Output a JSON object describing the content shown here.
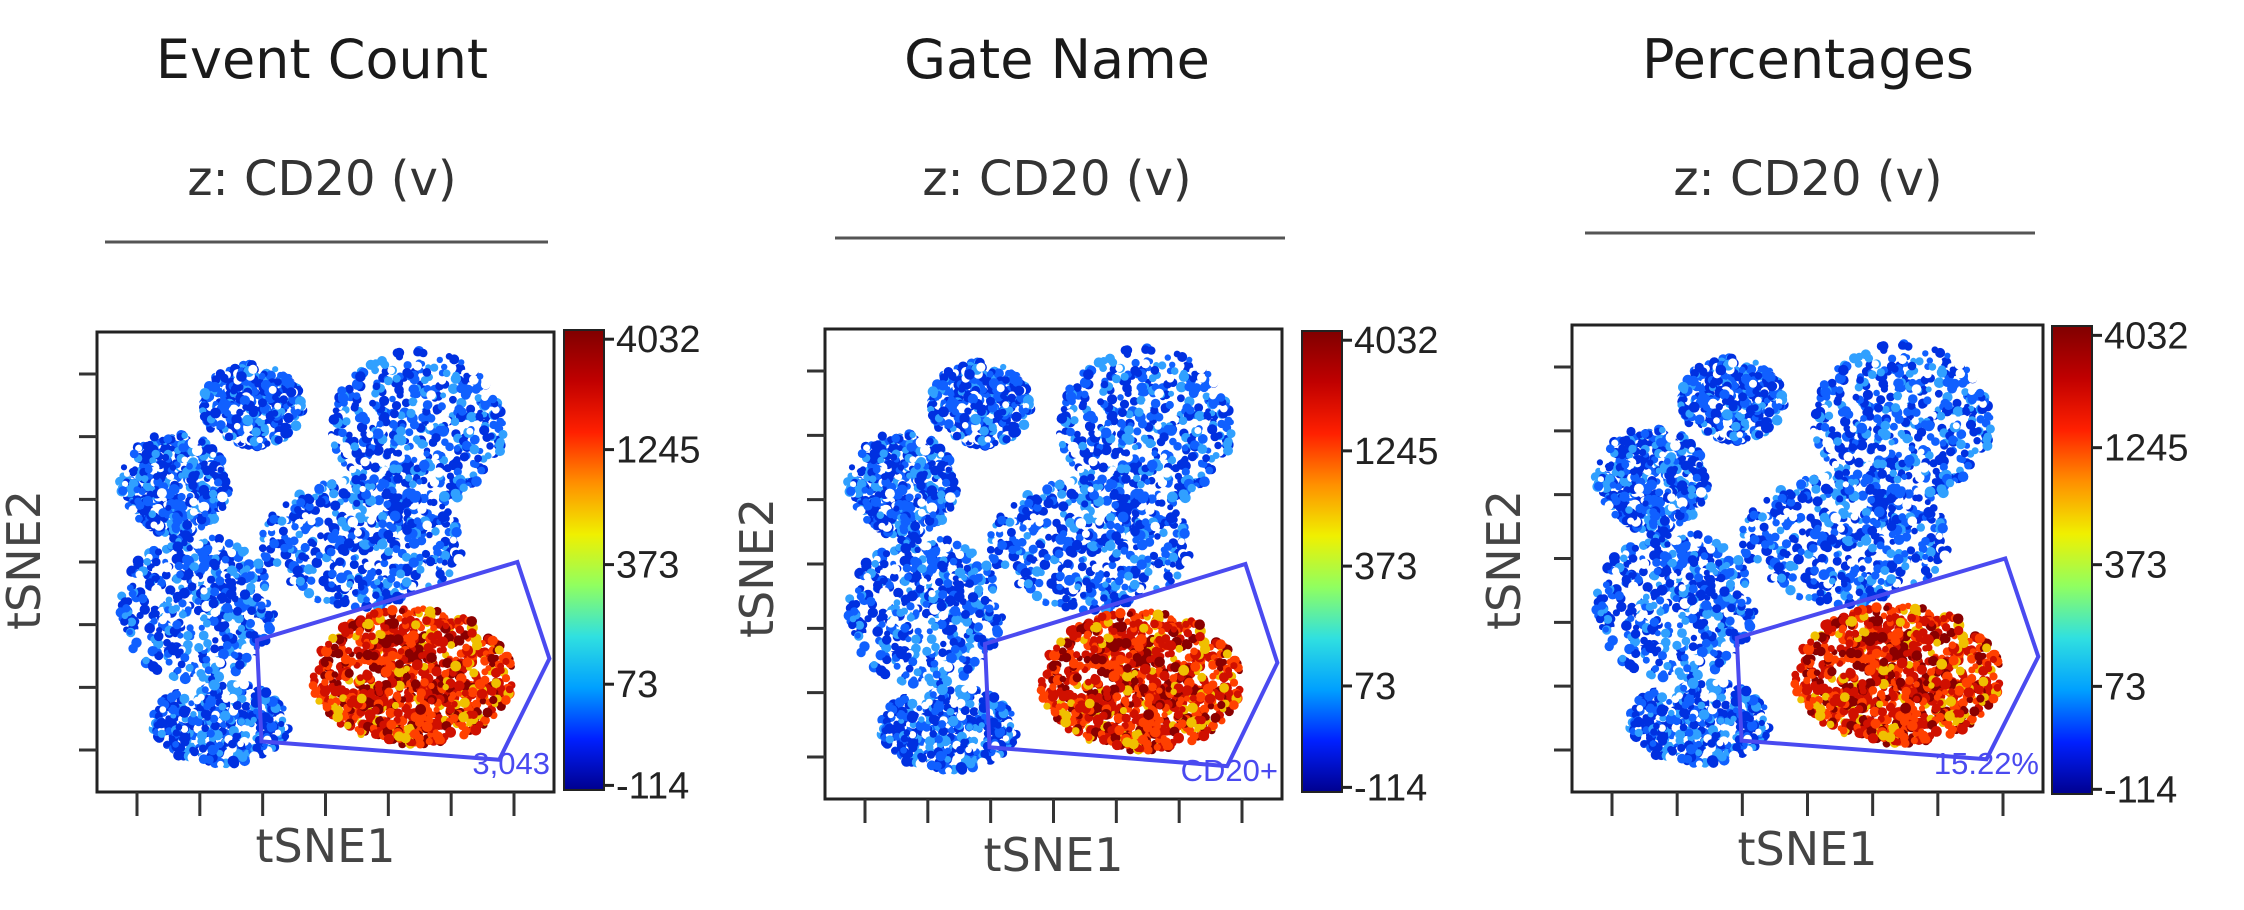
{
  "colors": {
    "gate": "#4a4af0",
    "colorbar": [
      "#00008f",
      "#0020ff",
      "#00a0ff",
      "#30e0e0",
      "#90ff60",
      "#f0f000",
      "#ff9000",
      "#ff2000",
      "#c00000",
      "#800000"
    ]
  },
  "chart_data": [
    {
      "type": "scatter",
      "title": "Event Count",
      "subtitle": "z: CD20 (v)",
      "xlabel": "tSNE1",
      "ylabel": "tSNE2",
      "colorbar_ticks": [
        "4032",
        "1245",
        "373",
        "73",
        "-114"
      ],
      "gate_label": "3,043"
    },
    {
      "type": "scatter",
      "title": "Gate Name",
      "subtitle": "z: CD20 (v)",
      "xlabel": "tSNE1",
      "ylabel": "tSNE2",
      "colorbar_ticks": [
        "4032",
        "1245",
        "373",
        "73",
        "-114"
      ],
      "gate_label": "CD20+"
    },
    {
      "type": "scatter",
      "title": "Percentages",
      "subtitle": "z: CD20 (v)",
      "xlabel": "tSNE1",
      "ylabel": "tSNE2",
      "colorbar_ticks": [
        "4032",
        "1245",
        "373",
        "73",
        "-114"
      ],
      "gate_label": "15.22%"
    }
  ]
}
